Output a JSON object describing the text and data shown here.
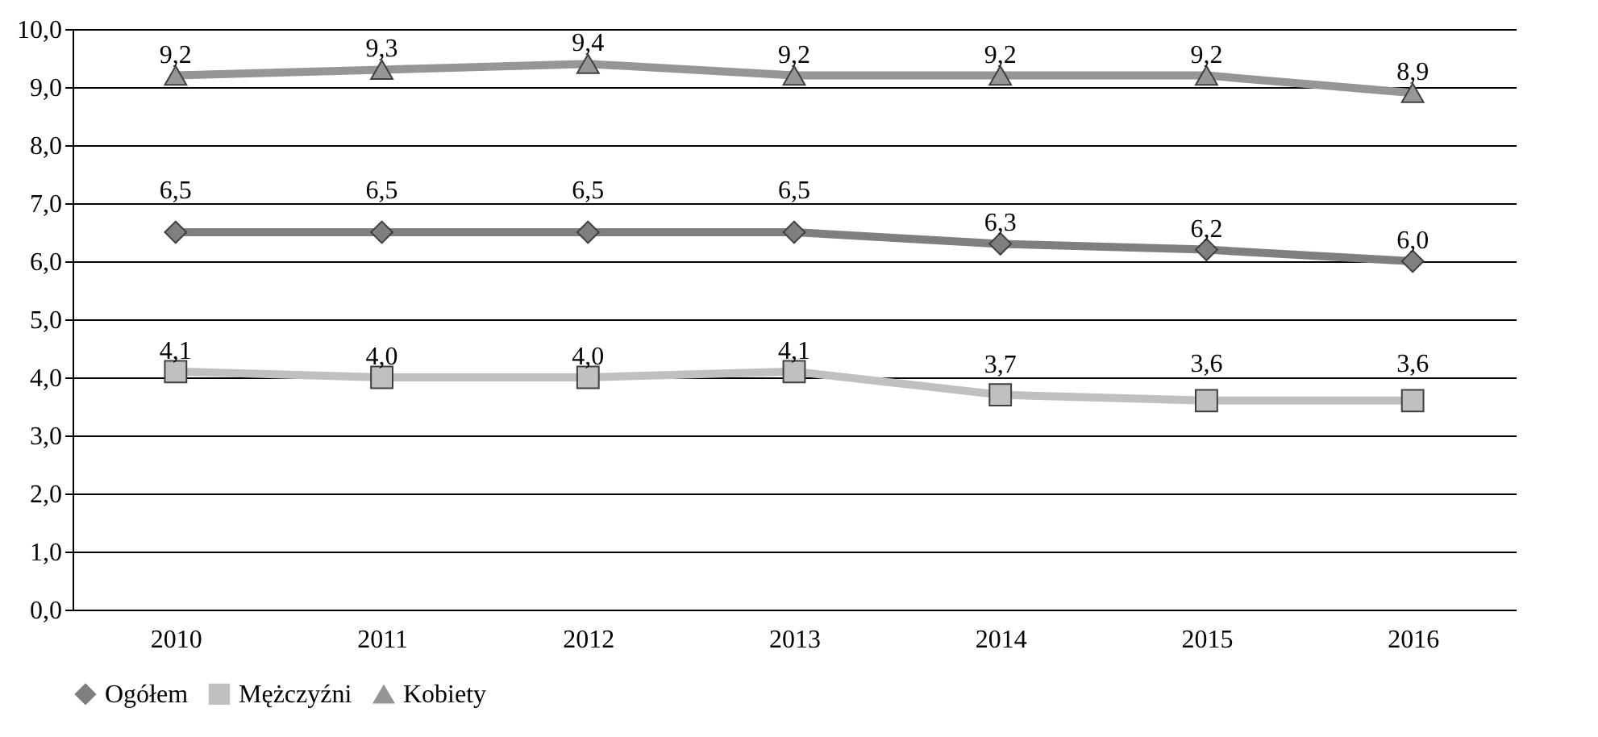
{
  "chart_data": {
    "type": "line",
    "categories": [
      "2010",
      "2011",
      "2012",
      "2013",
      "2014",
      "2015",
      "2016"
    ],
    "series": [
      {
        "name": "Ogółem",
        "color": "#7f7f7f",
        "marker": "diamond",
        "values": [
          6.5,
          6.5,
          6.5,
          6.5,
          6.3,
          6.2,
          6.0
        ],
        "value_labels": [
          "6,5",
          "6,5",
          "6,5",
          "6,5",
          "6,3",
          "6,2",
          "6,0"
        ]
      },
      {
        "name": "Mężczyźni",
        "color": "#c0c0c0",
        "marker": "square",
        "values": [
          4.1,
          4.0,
          4.0,
          4.1,
          3.7,
          3.6,
          3.6
        ],
        "value_labels": [
          "4,1",
          "4,0",
          "4,0",
          "4,1",
          "3,7",
          "3,6",
          "3,6"
        ]
      },
      {
        "name": "Kobiety",
        "color": "#969696",
        "marker": "triangle",
        "values": [
          9.2,
          9.3,
          9.4,
          9.2,
          9.2,
          9.2,
          8.9
        ],
        "value_labels": [
          "9,2",
          "9,3",
          "9,4",
          "9,2",
          "9,2",
          "9,2",
          "8,9"
        ]
      }
    ],
    "ylim": [
      0,
      10
    ],
    "yticks": [
      {
        "value": 0,
        "label": "0,0"
      },
      {
        "value": 1,
        "label": "1,0"
      },
      {
        "value": 2,
        "label": "2,0"
      },
      {
        "value": 3,
        "label": "3,0"
      },
      {
        "value": 4,
        "label": "4,0"
      },
      {
        "value": 5,
        "label": "5,0"
      },
      {
        "value": 6,
        "label": "6,0"
      },
      {
        "value": 7,
        "label": "7,0"
      },
      {
        "value": 8,
        "label": "8,0"
      },
      {
        "value": 9,
        "label": "9,0"
      },
      {
        "value": 10,
        "label": "10,0"
      }
    ],
    "grid": "y",
    "legend": "bottom",
    "line_style": "solid"
  }
}
